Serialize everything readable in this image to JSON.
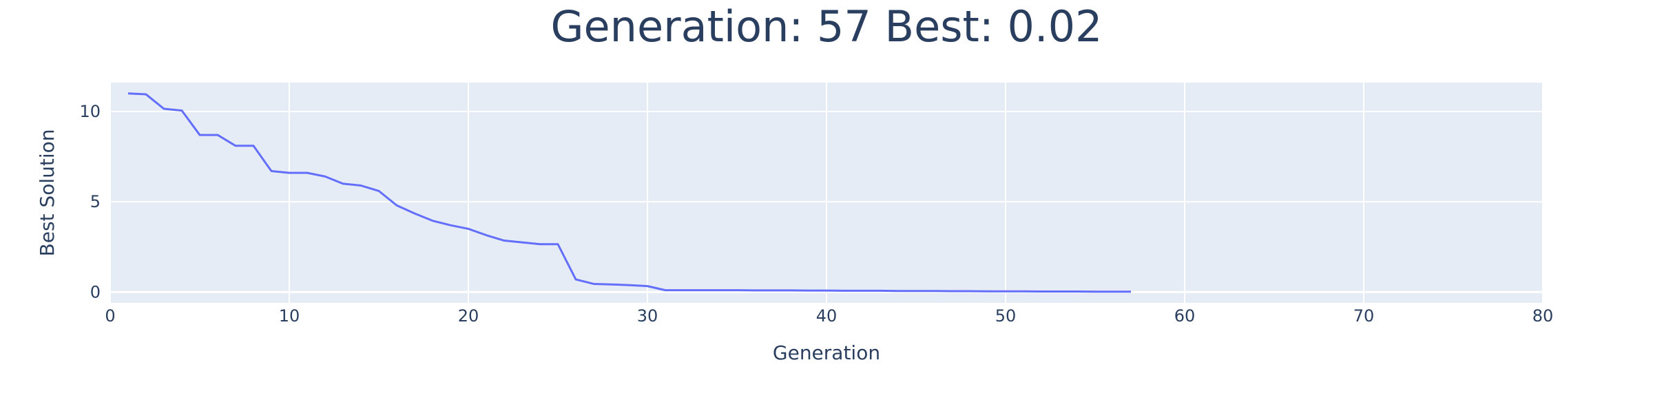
{
  "chart_data": {
    "type": "line",
    "title": "Generation: 57 Best: 0.02",
    "xlabel": "Generation",
    "ylabel": "Best Solution",
    "xlim": [
      0,
      80
    ],
    "ylim": [
      -0.6,
      11.6
    ],
    "xticks": [
      0,
      10,
      20,
      30,
      40,
      50,
      60,
      70,
      80
    ],
    "yticks": [
      0,
      5,
      10
    ],
    "grid": true,
    "legend": "none",
    "colors": {
      "plot_bg": "#e5ecf6",
      "grid": "#ffffff",
      "line": "#636efa",
      "text": "#2a3f5f"
    },
    "series": [
      {
        "x": [
          1,
          2,
          3,
          4,
          5,
          6,
          7,
          8,
          9,
          10,
          11,
          12,
          13,
          14,
          15,
          16,
          17,
          18,
          19,
          20,
          21,
          22,
          23,
          24,
          25,
          26,
          27,
          28,
          29,
          30,
          31,
          32,
          33,
          34,
          35,
          36,
          37,
          38,
          39,
          40,
          41,
          42,
          43,
          44,
          45,
          46,
          47,
          48,
          49,
          50,
          51,
          52,
          53,
          54,
          55,
          56,
          57
        ],
        "values": [
          11.0,
          10.95,
          10.15,
          10.05,
          8.7,
          8.7,
          8.1,
          8.1,
          6.7,
          6.6,
          6.6,
          6.4,
          6.0,
          5.9,
          5.6,
          4.8,
          4.35,
          3.95,
          3.7,
          3.5,
          3.15,
          2.85,
          2.75,
          2.65,
          2.65,
          0.7,
          0.45,
          0.42,
          0.38,
          0.33,
          0.1,
          0.1,
          0.1,
          0.1,
          0.1,
          0.09,
          0.09,
          0.09,
          0.08,
          0.08,
          0.07,
          0.07,
          0.07,
          0.06,
          0.06,
          0.06,
          0.05,
          0.05,
          0.04,
          0.04,
          0.04,
          0.03,
          0.03,
          0.03,
          0.02,
          0.02,
          0.02
        ]
      }
    ]
  }
}
